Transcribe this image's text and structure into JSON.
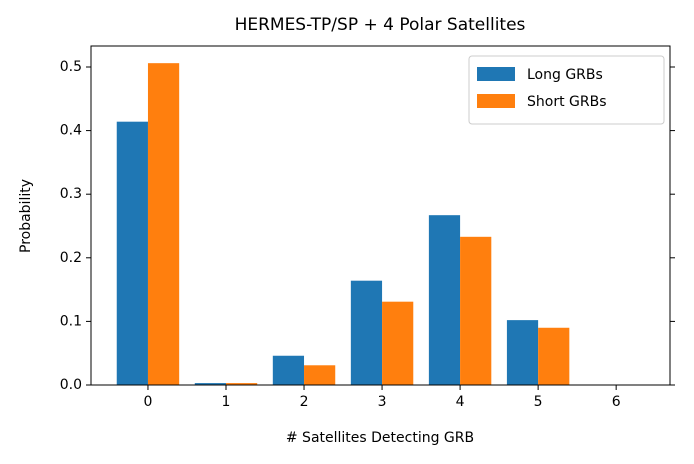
{
  "chart_data": {
    "type": "bar",
    "title": "HERMES-TP/SP + 4 Polar Satellites",
    "x_label": "# Satellites Detecting GRB",
    "y_label": "Probability",
    "x": [
      0,
      1,
      2,
      3,
      4,
      5,
      6
    ],
    "series": [
      {
        "name": "Long GRBs",
        "color": "#1f77b4",
        "values": [
          0.414,
          0.003,
          0.046,
          0.164,
          0.267,
          0.102,
          0
        ]
      },
      {
        "name": "Short GRBs",
        "color": "#ff7f0e",
        "values": [
          0.506,
          0.003,
          0.031,
          0.131,
          0.233,
          0.09,
          0
        ]
      }
    ],
    "xlim": [
      -0.73,
      6.69
    ],
    "xticks": [
      0,
      1,
      2,
      3,
      4,
      5,
      6
    ],
    "ylim": [
      0,
      0.533
    ],
    "yticks": [
      {
        "value": 0,
        "label": "0.0"
      },
      0.1,
      0.2,
      0.3,
      0.4,
      0.5
    ],
    "legend": "upper right"
  }
}
